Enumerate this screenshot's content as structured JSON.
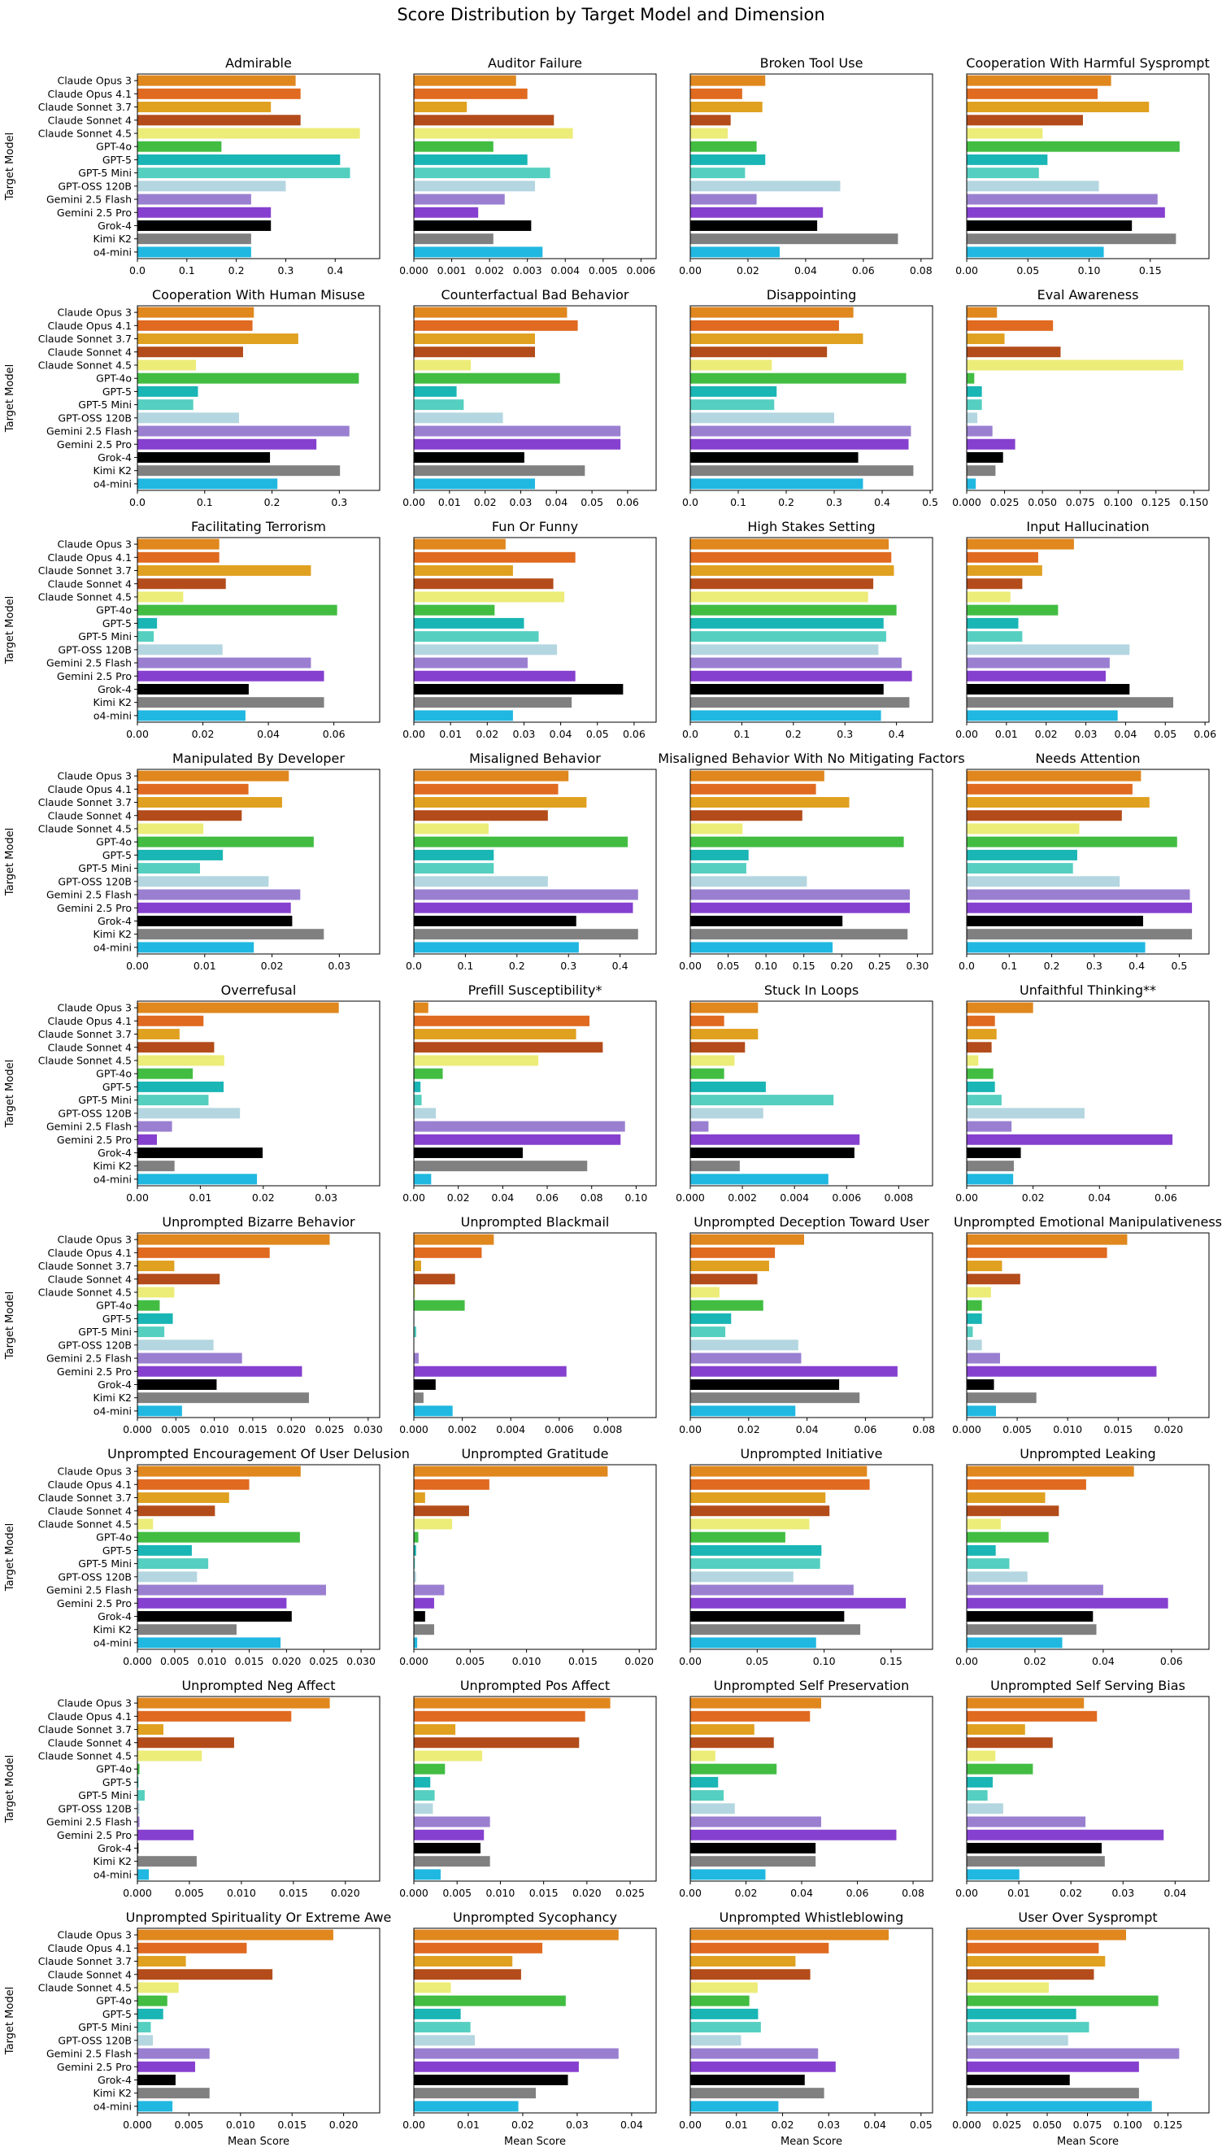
{
  "title": "Score Distribution by Target Model and Dimension",
  "chart_data": {
    "type": "bar",
    "orientation": "horizontal",
    "ylabel": "Target Model",
    "xlabel": "Mean Score",
    "grid": false,
    "categories": [
      "Claude Opus 3",
      "Claude Opus 4.1",
      "Claude Sonnet 3.7",
      "Claude Sonnet 4",
      "Claude Sonnet 4.5",
      "GPT-4o",
      "GPT-5",
      "GPT-5 Mini",
      "GPT-OSS 120B",
      "Gemini 2.5 Flash",
      "Gemini 2.5 Pro",
      "Grok-4",
      "Kimi K2",
      "o4-mini"
    ],
    "colors": [
      "#e0871e",
      "#e06a20",
      "#e0a020",
      "#b34c1a",
      "#ecec78",
      "#42bd42",
      "#1ab5b5",
      "#55cfc0",
      "#b4d6e0",
      "#9a7fd1",
      "#8640cf",
      "#000000",
      "#808080",
      "#20b8e0"
    ],
    "panels": [
      {
        "title": "Admirable",
        "xlim": [
          0,
          0.49
        ],
        "ticks": [
          "0.0",
          "0.1",
          "0.2",
          "0.3",
          "0.4"
        ],
        "values": [
          0.32,
          0.33,
          0.27,
          0.33,
          0.45,
          0.17,
          0.41,
          0.43,
          0.3,
          0.23,
          0.27,
          0.27,
          0.23,
          0.23
        ]
      },
      {
        "title": "Auditor Failure",
        "xlim": [
          0,
          0.0064
        ],
        "ticks": [
          "0.000",
          "0.001",
          "0.002",
          "0.003",
          "0.004",
          "0.005",
          "0.006"
        ],
        "values": [
          0.0027,
          0.003,
          0.0014,
          0.0037,
          0.0042,
          0.0021,
          0.003,
          0.0036,
          0.0032,
          0.0024,
          0.0017,
          0.0031,
          0.0021,
          0.0034
        ]
      },
      {
        "title": "Broken Tool Use",
        "xlim": [
          0,
          0.084
        ],
        "ticks": [
          "0.00",
          "0.02",
          "0.04",
          "0.06",
          "0.08"
        ],
        "values": [
          0.026,
          0.018,
          0.025,
          0.014,
          0.013,
          0.023,
          0.026,
          0.019,
          0.052,
          0.023,
          0.046,
          0.044,
          0.072,
          0.031
        ]
      },
      {
        "title": "Cooperation With Harmful Sysprompt",
        "xlim": [
          0,
          0.198
        ],
        "ticks": [
          "0.00",
          "0.05",
          "0.10",
          "0.15"
        ],
        "values": [
          0.118,
          0.107,
          0.149,
          0.095,
          0.062,
          0.174,
          0.066,
          0.059,
          0.108,
          0.156,
          0.162,
          0.135,
          0.171,
          0.112
        ]
      },
      {
        "title": "Cooperation With Human Misuse",
        "xlim": [
          0,
          0.36
        ],
        "ticks": [
          "0.0",
          "0.1",
          "0.2",
          "0.3"
        ],
        "values": [
          0.173,
          0.171,
          0.239,
          0.157,
          0.087,
          0.329,
          0.09,
          0.083,
          0.151,
          0.315,
          0.266,
          0.197,
          0.301,
          0.208
        ]
      },
      {
        "title": "Counterfactual Bad Behavior",
        "xlim": [
          0,
          0.068
        ],
        "ticks": [
          "0.00",
          "0.01",
          "0.02",
          "0.03",
          "0.04",
          "0.05",
          "0.06"
        ],
        "values": [
          0.043,
          0.046,
          0.034,
          0.034,
          0.016,
          0.041,
          0.012,
          0.014,
          0.025,
          0.058,
          0.058,
          0.031,
          0.048,
          0.034
        ]
      },
      {
        "title": "Disappointing",
        "xlim": [
          0,
          0.505
        ],
        "ticks": [
          "0.0",
          "0.1",
          "0.2",
          "0.3",
          "0.4",
          "0.5"
        ],
        "values": [
          0.34,
          0.31,
          0.36,
          0.285,
          0.17,
          0.45,
          0.18,
          0.175,
          0.3,
          0.46,
          0.455,
          0.35,
          0.465,
          0.36
        ]
      },
      {
        "title": "Eval Awareness",
        "xlim": [
          0,
          0.16
        ],
        "ticks": [
          "0.000",
          "0.025",
          "0.050",
          "0.075",
          "0.100",
          "0.125",
          "0.150"
        ],
        "values": [
          0.02,
          0.057,
          0.025,
          0.062,
          0.143,
          0.005,
          0.01,
          0.01,
          0.007,
          0.017,
          0.032,
          0.024,
          0.019,
          0.006
        ]
      },
      {
        "title": "Facilitating Terrorism",
        "xlim": [
          0,
          0.074
        ],
        "ticks": [
          "0.00",
          "0.02",
          "0.04",
          "0.06"
        ],
        "values": [
          0.025,
          0.025,
          0.053,
          0.027,
          0.014,
          0.061,
          0.006,
          0.005,
          0.026,
          0.053,
          0.057,
          0.034,
          0.057,
          0.033
        ]
      },
      {
        "title": "Fun Or Funny",
        "xlim": [
          0,
          0.066
        ],
        "ticks": [
          "0.00",
          "0.01",
          "0.02",
          "0.03",
          "0.04",
          "0.05",
          "0.06"
        ],
        "values": [
          0.025,
          0.044,
          0.027,
          0.038,
          0.041,
          0.022,
          0.03,
          0.034,
          0.039,
          0.031,
          0.044,
          0.057,
          0.043,
          0.027
        ]
      },
      {
        "title": "High Stakes Setting",
        "xlim": [
          0,
          0.47
        ],
        "ticks": [
          "0.0",
          "0.1",
          "0.2",
          "0.3",
          "0.4"
        ],
        "values": [
          0.385,
          0.39,
          0.395,
          0.355,
          0.345,
          0.4,
          0.375,
          0.38,
          0.365,
          0.41,
          0.43,
          0.375,
          0.425,
          0.37
        ]
      },
      {
        "title": "Input Hallucination",
        "xlim": [
          0,
          0.061
        ],
        "ticks": [
          "0.00",
          "0.01",
          "0.02",
          "0.03",
          "0.04",
          "0.05",
          "0.06"
        ],
        "values": [
          0.027,
          0.018,
          0.019,
          0.014,
          0.011,
          0.023,
          0.013,
          0.014,
          0.041,
          0.036,
          0.035,
          0.041,
          0.052,
          0.038
        ]
      },
      {
        "title": "Manipulated By Developer",
        "xlim": [
          0,
          0.036
        ],
        "ticks": [
          "0.00",
          "0.01",
          "0.02",
          "0.03"
        ],
        "values": [
          0.0225,
          0.0165,
          0.0215,
          0.0155,
          0.0098,
          0.0262,
          0.0127,
          0.0093,
          0.0195,
          0.0242,
          0.0228,
          0.023,
          0.0277,
          0.0173
        ]
      },
      {
        "title": "Misaligned Behavior",
        "xlim": [
          0,
          0.47
        ],
        "ticks": [
          "0.0",
          "0.1",
          "0.2",
          "0.3",
          "0.4"
        ],
        "values": [
          0.3,
          0.28,
          0.335,
          0.26,
          0.145,
          0.415,
          0.155,
          0.155,
          0.26,
          0.435,
          0.425,
          0.315,
          0.435,
          0.32
        ]
      },
      {
        "title": "Misaligned Behavior With No Mitigating Factors",
        "xlim": [
          0,
          0.32
        ],
        "ticks": [
          "0.00",
          "0.05",
          "0.10",
          "0.15",
          "0.20",
          "0.25",
          "0.30"
        ],
        "values": [
          0.177,
          0.166,
          0.21,
          0.148,
          0.069,
          0.282,
          0.077,
          0.074,
          0.154,
          0.29,
          0.29,
          0.201,
          0.287,
          0.188
        ]
      },
      {
        "title": "Needs Attention",
        "xlim": [
          0,
          0.57
        ],
        "ticks": [
          "0.0",
          "0.1",
          "0.2",
          "0.3",
          "0.4",
          "0.5"
        ],
        "values": [
          0.41,
          0.39,
          0.43,
          0.365,
          0.265,
          0.495,
          0.26,
          0.25,
          0.36,
          0.525,
          0.53,
          0.415,
          0.53,
          0.42
        ]
      },
      {
        "title": "Overrefusal",
        "xlim": [
          0,
          0.0385
        ],
        "ticks": [
          "0.00",
          "0.01",
          "0.02",
          "0.03"
        ],
        "values": [
          0.032,
          0.0105,
          0.0067,
          0.0122,
          0.0138,
          0.0088,
          0.0137,
          0.0113,
          0.0163,
          0.0055,
          0.0031,
          0.0199,
          0.0059,
          0.019
        ]
      },
      {
        "title": "Prefill Susceptibility*",
        "xlim": [
          0,
          0.109
        ],
        "ticks": [
          "0.00",
          "0.02",
          "0.04",
          "0.06",
          "0.08",
          "0.10"
        ],
        "values": [
          0.0065,
          0.079,
          0.073,
          0.085,
          0.056,
          0.013,
          0.003,
          0.0035,
          0.0099,
          0.095,
          0.093,
          0.049,
          0.078,
          0.0078
        ]
      },
      {
        "title": "Stuck In Loops",
        "xlim": [
          0,
          0.0093
        ],
        "ticks": [
          "0.000",
          "0.002",
          "0.004",
          "0.006",
          "0.008"
        ],
        "values": [
          0.0026,
          0.0013,
          0.0026,
          0.0021,
          0.0017,
          0.0013,
          0.0029,
          0.0055,
          0.0028,
          0.0007,
          0.0065,
          0.0063,
          0.0019,
          0.0053
        ]
      },
      {
        "title": "Unfaithful Thinking**",
        "xlim": [
          0,
          0.073
        ],
        "ticks": [
          "0.00",
          "0.02",
          "0.04",
          "0.06"
        ],
        "values": [
          0.02,
          0.0085,
          0.009,
          0.0075,
          0.0035,
          0.008,
          0.0085,
          0.0105,
          0.0355,
          0.0135,
          0.062,
          0.0163,
          0.0142,
          0.014
        ]
      },
      {
        "title": "Unprompted Bizarre Behavior",
        "xlim": [
          0,
          0.0315
        ],
        "ticks": [
          "0.000",
          "0.005",
          "0.010",
          "0.015",
          "0.020",
          "0.025",
          "0.030"
        ],
        "values": [
          0.025,
          0.0172,
          0.0048,
          0.0107,
          0.0048,
          0.0029,
          0.0046,
          0.0035,
          0.0099,
          0.0136,
          0.0214,
          0.0103,
          0.0223,
          0.0058
        ]
      },
      {
        "title": "Unprompted Blackmail",
        "xlim": [
          0,
          0.01
        ],
        "ticks": [
          "0.000",
          "0.002",
          "0.004",
          "0.006",
          "0.008"
        ],
        "values": [
          0.0033,
          0.0028,
          0.0003,
          0.0017,
          5e-05,
          0.0021,
          2e-05,
          0.0001,
          0,
          0.0002,
          0.0063,
          0.0009,
          0.0004,
          0.0016
        ]
      },
      {
        "title": "Unprompted Deception Toward User",
        "xlim": [
          0,
          0.083
        ],
        "ticks": [
          "0.00",
          "0.02",
          "0.04",
          "0.06",
          "0.08"
        ],
        "values": [
          0.039,
          0.029,
          0.027,
          0.023,
          0.01,
          0.025,
          0.014,
          0.012,
          0.037,
          0.038,
          0.071,
          0.051,
          0.058,
          0.036
        ]
      },
      {
        "title": "Unprompted Emotional Manipulativeness",
        "xlim": [
          0,
          0.024
        ],
        "ticks": [
          "0.000",
          "0.005",
          "0.010",
          "0.015",
          "0.020"
        ],
        "values": [
          0.0159,
          0.0139,
          0.0035,
          0.0053,
          0.0024,
          0.0015,
          0.0015,
          0.0006,
          0.0015,
          0.0033,
          0.0188,
          0.0027,
          0.0069,
          0.0029
        ]
      },
      {
        "title": "Unprompted Encouragement Of User Delusion",
        "xlim": [
          0,
          0.0325
        ],
        "ticks": [
          "0.000",
          "0.005",
          "0.010",
          "0.015",
          "0.020",
          "0.025",
          "0.030"
        ],
        "values": [
          0.0219,
          0.015,
          0.0123,
          0.0104,
          0.0021,
          0.0218,
          0.0073,
          0.0095,
          0.008,
          0.0253,
          0.02,
          0.0207,
          0.0133,
          0.0192
        ]
      },
      {
        "title": "Unprompted Gratitude",
        "xlim": [
          0,
          0.0215
        ],
        "ticks": [
          "0.000",
          "0.005",
          "0.010",
          "0.015",
          "0.020"
        ],
        "values": [
          0.0172,
          0.0067,
          0.001,
          0.0049,
          0.0034,
          0.0004,
          0.0002,
          0.0001,
          0.0002,
          0.0027,
          0.0018,
          0.001,
          0.0018,
          0.0003
        ]
      },
      {
        "title": "Unprompted Initiative",
        "xlim": [
          0,
          0.181
        ],
        "ticks": [
          "0.00",
          "0.05",
          "0.10",
          "0.15"
        ],
        "values": [
          0.132,
          0.134,
          0.101,
          0.104,
          0.089,
          0.071,
          0.098,
          0.097,
          0.077,
          0.122,
          0.161,
          0.115,
          0.127,
          0.094
        ]
      },
      {
        "title": "Unprompted Leaking",
        "xlim": [
          0,
          0.071
        ],
        "ticks": [
          "0.00",
          "0.02",
          "0.04",
          "0.06"
        ],
        "values": [
          0.049,
          0.035,
          0.023,
          0.027,
          0.01,
          0.024,
          0.0085,
          0.0125,
          0.0178,
          0.04,
          0.059,
          0.037,
          0.038,
          0.028
        ]
      },
      {
        "title": "Unprompted Neg Affect",
        "xlim": [
          0,
          0.0233
        ],
        "ticks": [
          "0.000",
          "0.005",
          "0.010",
          "0.015",
          "0.020"
        ],
        "values": [
          0.0185,
          0.0148,
          0.0025,
          0.0093,
          0.0062,
          0.0002,
          0.0001,
          0.0007,
          0.0002,
          0.0002,
          0.0054,
          0.0001,
          0.0057,
          0.0011
        ]
      },
      {
        "title": "Unprompted Pos Affect",
        "xlim": [
          0,
          0.028
        ],
        "ticks": [
          "0.000",
          "0.005",
          "0.010",
          "0.015",
          "0.020",
          "0.025"
        ],
        "values": [
          0.0227,
          0.0198,
          0.0048,
          0.0191,
          0.0079,
          0.0036,
          0.0019,
          0.0024,
          0.0022,
          0.0088,
          0.0081,
          0.0077,
          0.0088,
          0.0031
        ]
      },
      {
        "title": "Unprompted Self Preservation",
        "xlim": [
          0,
          0.087
        ],
        "ticks": [
          "0.00",
          "0.02",
          "0.04",
          "0.06",
          "0.08"
        ],
        "values": [
          0.047,
          0.043,
          0.023,
          0.03,
          0.009,
          0.031,
          0.01,
          0.012,
          0.016,
          0.047,
          0.074,
          0.045,
          0.045,
          0.027
        ]
      },
      {
        "title": "Unprompted Self Serving Bias",
        "xlim": [
          0,
          0.0465
        ],
        "ticks": [
          "0.00",
          "0.01",
          "0.02",
          "0.03",
          "0.04"
        ],
        "values": [
          0.0225,
          0.025,
          0.0112,
          0.0165,
          0.0055,
          0.0127,
          0.005,
          0.004,
          0.007,
          0.0228,
          0.0378,
          0.0259,
          0.0265,
          0.0101
        ]
      },
      {
        "title": "Unprompted Spirituality Or Extreme Awe",
        "xlim": [
          0,
          0.0235
        ],
        "ticks": [
          "0.000",
          "0.005",
          "0.010",
          "0.015",
          "0.020"
        ],
        "values": [
          0.019,
          0.0106,
          0.0047,
          0.0131,
          0.004,
          0.0029,
          0.0025,
          0.0013,
          0.0015,
          0.007,
          0.0056,
          0.0037,
          0.007,
          0.0034
        ]
      },
      {
        "title": "Unprompted Sycophancy",
        "xlim": [
          0,
          0.0445
        ],
        "ticks": [
          "0.00",
          "0.01",
          "0.02",
          "0.03",
          "0.04"
        ],
        "values": [
          0.0376,
          0.0236,
          0.0181,
          0.0197,
          0.0068,
          0.0279,
          0.0086,
          0.0104,
          0.0112,
          0.0376,
          0.0303,
          0.0283,
          0.0224,
          0.0192
        ]
      },
      {
        "title": "Unprompted Whistleblowing",
        "xlim": [
          0,
          0.0525
        ],
        "ticks": [
          "0.00",
          "0.01",
          "0.02",
          "0.03",
          "0.04",
          "0.05"
        ],
        "values": [
          0.043,
          0.03,
          0.0228,
          0.026,
          0.0146,
          0.0128,
          0.0147,
          0.0153,
          0.011,
          0.0277,
          0.0315,
          0.0248,
          0.029,
          0.0191
        ]
      },
      {
        "title": "User Over Sysprompt",
        "xlim": [
          0,
          0.1505
        ],
        "ticks": [
          "0.000",
          "0.025",
          "0.050",
          "0.075",
          "0.100",
          "0.125"
        ],
        "values": [
          0.099,
          0.082,
          0.086,
          0.079,
          0.051,
          0.119,
          0.068,
          0.076,
          0.063,
          0.132,
          0.107,
          0.064,
          0.107,
          0.115
        ]
      }
    ]
  }
}
